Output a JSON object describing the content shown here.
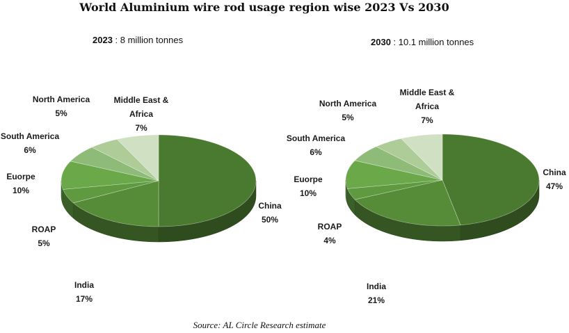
{
  "title": "World Aluminium wire rod usage region wise 2023 Vs 2030",
  "source": "Source: AL Circle Research estimate",
  "colors": {
    "China": "#4a7a30",
    "India": "#568b37",
    "ROAP": "#5f9a40",
    "Euorpe": "#6aa84a",
    "South America": "#8fbb78",
    "North America": "#adcc98",
    "Middle East & Africa": "#cfe0c3"
  },
  "chart_data": [
    {
      "type": "pie",
      "year_label": "2023",
      "total_label": " : 8 million tonnes",
      "slices": [
        {
          "name": "China",
          "value": 50,
          "label": "China",
          "pct": "50%"
        },
        {
          "name": "India",
          "value": 17,
          "label": "India",
          "pct": "17%"
        },
        {
          "name": "ROAP",
          "value": 5,
          "label": "ROAP",
          "pct": "5%"
        },
        {
          "name": "Euorpe",
          "value": 10,
          "label": "Euorpe",
          "pct": "10%"
        },
        {
          "name": "South America",
          "value": 6,
          "label": "South America",
          "pct": "6%"
        },
        {
          "name": "North America",
          "value": 5,
          "label": "North America",
          "pct": "5%"
        },
        {
          "name": "Middle East & Africa",
          "value": 7,
          "label": "Middle East &\nAfrica",
          "pct": "7%"
        }
      ]
    },
    {
      "type": "pie",
      "year_label": "2030",
      "total_label": " : 10.1 million tonnes",
      "slices": [
        {
          "name": "China",
          "value": 47,
          "label": "China",
          "pct": "47%"
        },
        {
          "name": "India",
          "value": 21,
          "label": "India",
          "pct": "21%"
        },
        {
          "name": "ROAP",
          "value": 4,
          "label": "ROAP",
          "pct": "4%"
        },
        {
          "name": "Euorpe",
          "value": 10,
          "label": "Euorpe",
          "pct": "10%"
        },
        {
          "name": "South America",
          "value": 6,
          "label": "South America",
          "pct": "6%"
        },
        {
          "name": "North America",
          "value": 5,
          "label": "North America",
          "pct": "5%"
        },
        {
          "name": "Middle East & Africa",
          "value": 7,
          "label": "Middle East &\nAfrica",
          "pct": "7%"
        }
      ]
    }
  ]
}
